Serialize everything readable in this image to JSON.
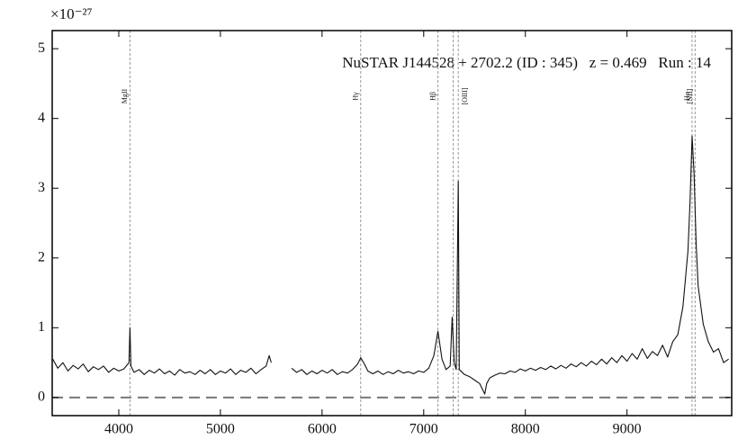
{
  "chart_data": {
    "type": "line",
    "title": "NuSTAR J144528 + 2702.2 (ID : 345)   z = 0.469   Run : 14",
    "y_offset": "×10⁻²⁷",
    "xlim": [
      3345,
      10030
    ],
    "ylim": [
      -0.26,
      5.26
    ],
    "xticks": [
      4000,
      5000,
      6000,
      7000,
      8000,
      9000
    ],
    "yticks": [
      0,
      1,
      2,
      3,
      4,
      5
    ],
    "hline": 0,
    "color": "#111111",
    "x": [
      3350,
      3400,
      3450,
      3500,
      3550,
      3600,
      3650,
      3700,
      3750,
      3800,
      3850,
      3900,
      3950,
      4000,
      4050,
      4100,
      4110,
      4120,
      4150,
      4200,
      4250,
      4300,
      4350,
      4400,
      4450,
      4500,
      4550,
      4600,
      4650,
      4700,
      4750,
      4800,
      4850,
      4900,
      4950,
      5000,
      5050,
      5100,
      5150,
      5200,
      5250,
      5300,
      5350,
      5400,
      5450,
      5480,
      5500,
      5550,
      5700,
      5750,
      5800,
      5850,
      5900,
      5950,
      6000,
      6050,
      6100,
      6150,
      6200,
      6250,
      6300,
      6350,
      6380,
      6420,
      6450,
      6500,
      6550,
      6600,
      6650,
      6700,
      6750,
      6800,
      6850,
      6900,
      6950,
      7000,
      7050,
      7100,
      7140,
      7180,
      7220,
      7260,
      7280,
      7300,
      7320,
      7340,
      7350,
      7400,
      7450,
      7500,
      7550,
      7600,
      7620,
      7650,
      7700,
      7750,
      7800,
      7850,
      7900,
      7950,
      8000,
      8050,
      8100,
      8150,
      8200,
      8250,
      8300,
      8350,
      8400,
      8450,
      8500,
      8550,
      8600,
      8650,
      8700,
      8750,
      8800,
      8850,
      8900,
      8950,
      9000,
      9050,
      9100,
      9150,
      9200,
      9250,
      9300,
      9350,
      9400,
      9450,
      9500,
      9550,
      9600,
      9620,
      9640,
      9660,
      9680,
      9700,
      9750,
      9800,
      9850,
      9900,
      9950,
      10000
    ],
    "values": [
      0.55,
      0.42,
      0.5,
      0.38,
      0.46,
      0.41,
      0.48,
      0.37,
      0.44,
      0.4,
      0.45,
      0.36,
      0.42,
      0.38,
      0.41,
      0.5,
      1.0,
      0.45,
      0.36,
      0.4,
      0.33,
      0.39,
      0.35,
      0.41,
      0.34,
      0.38,
      0.32,
      0.4,
      0.35,
      0.37,
      0.33,
      0.39,
      0.34,
      0.4,
      0.33,
      0.38,
      0.35,
      0.41,
      0.33,
      0.39,
      0.36,
      0.42,
      0.34,
      0.4,
      0.45,
      0.6,
      0.5,
      null,
      0.42,
      0.36,
      0.4,
      0.33,
      0.38,
      0.34,
      0.39,
      0.35,
      0.4,
      0.33,
      0.37,
      0.35,
      0.4,
      0.48,
      0.57,
      0.47,
      0.38,
      0.34,
      0.38,
      0.33,
      0.37,
      0.34,
      0.39,
      0.35,
      0.37,
      0.34,
      0.38,
      0.36,
      0.42,
      0.6,
      0.95,
      0.55,
      0.4,
      0.45,
      1.15,
      0.5,
      0.4,
      3.1,
      0.4,
      0.33,
      0.3,
      0.25,
      0.2,
      0.05,
      0.2,
      0.28,
      0.32,
      0.35,
      0.34,
      0.38,
      0.36,
      0.41,
      0.38,
      0.42,
      0.39,
      0.43,
      0.4,
      0.45,
      0.41,
      0.46,
      0.42,
      0.48,
      0.44,
      0.5,
      0.45,
      0.52,
      0.47,
      0.55,
      0.48,
      0.57,
      0.5,
      0.6,
      0.52,
      0.63,
      0.55,
      0.7,
      0.56,
      0.66,
      0.6,
      0.75,
      0.58,
      0.8,
      0.9,
      1.3,
      2.1,
      2.8,
      3.75,
      3.2,
      2.2,
      1.6,
      1.05,
      0.8,
      0.65,
      0.7,
      0.5,
      0.55
    ],
    "lines": [
      {
        "label": "MgII",
        "x": [
          4110
        ]
      },
      {
        "label": "Hγ",
        "x": [
          6380
        ]
      },
      {
        "label": "Hβ",
        "x": [
          7140
        ]
      },
      {
        "label": "[OIII]",
        "x": [
          7290,
          7340
        ]
      },
      {
        "label": "Hα",
        "x": [
          9640
        ]
      },
      {
        "label": "[NII]",
        "x": [
          9670
        ]
      }
    ]
  }
}
